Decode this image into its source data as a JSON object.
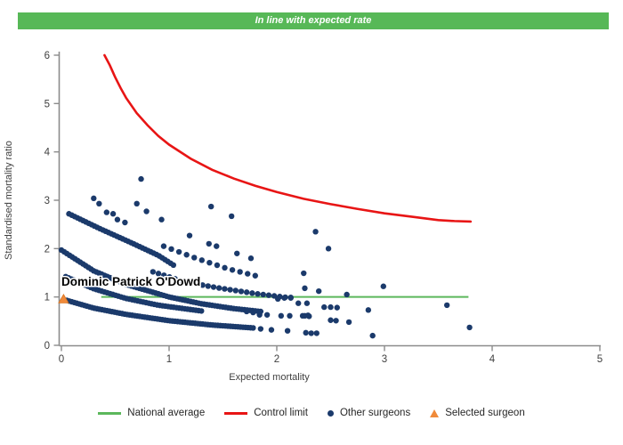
{
  "header": {
    "title": "In line with expected rate",
    "background": "#57b857"
  },
  "colors": {
    "axis": "#8c8c8c",
    "tick_text": "#3f3f3f",
    "other_surgeons": "#1b3a6b",
    "control_limit": "#e81515",
    "national_average": "#5cb85c",
    "selected_surgeon": "#f08a3a",
    "selected_surgeon_edge": "#d9731f",
    "label_text": "#000000"
  },
  "legend": {
    "items": [
      {
        "label": "National average",
        "marker": "line",
        "color": "#5cb85c"
      },
      {
        "label": "Control limit",
        "marker": "line",
        "color": "#e81515"
      },
      {
        "label": "Other surgeons",
        "marker": "dot",
        "color": "#1b3a6b"
      },
      {
        "label": "Selected surgeon",
        "marker": "triangle",
        "color": "#f08a3a"
      }
    ]
  },
  "chart_data": {
    "type": "scatter",
    "title": "In line with expected rate",
    "xlabel": "Expected mortality",
    "ylabel": "Standardised mortality ratio",
    "xlim": [
      0,
      5
    ],
    "ylim": [
      0,
      6
    ],
    "x_ticks": [
      0,
      1,
      2,
      3,
      4,
      5
    ],
    "y_ticks": [
      0,
      1,
      2,
      3,
      4,
      5,
      6
    ],
    "grid": false,
    "legend_position": "bottom",
    "national_average": {
      "y": 1.0,
      "x_start": 0.37,
      "x_end": 3.78
    },
    "control_limit": {
      "points": [
        [
          0.4,
          6.0
        ],
        [
          0.45,
          5.79
        ],
        [
          0.5,
          5.54
        ],
        [
          0.55,
          5.32
        ],
        [
          0.6,
          5.12
        ],
        [
          0.7,
          4.8
        ],
        [
          0.8,
          4.55
        ],
        [
          0.9,
          4.33
        ],
        [
          1.0,
          4.15
        ],
        [
          1.2,
          3.86
        ],
        [
          1.4,
          3.63
        ],
        [
          1.6,
          3.45
        ],
        [
          1.8,
          3.3
        ],
        [
          2.0,
          3.17
        ],
        [
          2.25,
          3.03
        ],
        [
          2.5,
          2.92
        ],
        [
          2.75,
          2.82
        ],
        [
          3.0,
          2.73
        ],
        [
          3.25,
          2.66
        ],
        [
          3.5,
          2.59
        ],
        [
          3.65,
          2.57
        ],
        [
          3.8,
          2.56
        ]
      ]
    },
    "selected_surgeon": {
      "label": "Dominic Patrick O'Dowd",
      "x": 0.02,
      "y": 0.96
    },
    "other_surgeons": {
      "dot_radius": 3.2,
      "chains": [
        {
          "count": 75,
          "anchors": [
            [
              0.05,
              0.93
            ],
            [
              0.3,
              0.77
            ],
            [
              0.6,
              0.64
            ],
            [
              1.0,
              0.51
            ],
            [
              1.4,
              0.42
            ],
            [
              1.78,
              0.36
            ]
          ]
        },
        {
          "count": 50,
          "anchors": [
            [
              0.04,
              1.42
            ],
            [
              0.3,
              1.17
            ],
            [
              0.6,
              0.97
            ],
            [
              0.9,
              0.83
            ],
            [
              1.3,
              0.71
            ]
          ]
        },
        {
          "count": 75,
          "anchors": [
            [
              0.0,
              1.97
            ],
            [
              0.3,
              1.54
            ],
            [
              0.6,
              1.26
            ],
            [
              1.0,
              1.0
            ],
            [
              1.3,
              0.86
            ],
            [
              1.6,
              0.76
            ],
            [
              1.85,
              0.7
            ]
          ]
        },
        {
          "count": 38,
          "anchors": [
            [
              0.07,
              2.72
            ],
            [
              0.35,
              2.42
            ],
            [
              0.65,
              2.12
            ],
            [
              0.9,
              1.86
            ],
            [
              1.04,
              1.66
            ]
          ]
        },
        {
          "count": 26,
          "anchors": [
            [
              0.85,
              1.52
            ],
            [
              1.15,
              1.31
            ],
            [
              1.45,
              1.19
            ],
            [
              1.8,
              1.07
            ],
            [
              2.13,
              0.98
            ]
          ]
        },
        {
          "count": 13,
          "anchors": [
            [
              0.95,
              2.05
            ],
            [
              1.25,
              1.8
            ],
            [
              1.55,
              1.58
            ],
            [
              1.8,
              1.44
            ]
          ]
        }
      ],
      "points": [
        [
          0.3,
          3.04
        ],
        [
          0.35,
          2.93
        ],
        [
          0.42,
          2.75
        ],
        [
          0.48,
          2.72
        ],
        [
          0.52,
          2.6
        ],
        [
          0.59,
          2.54
        ],
        [
          0.7,
          2.93
        ],
        [
          0.74,
          3.44
        ],
        [
          0.79,
          2.77
        ],
        [
          0.93,
          2.6
        ],
        [
          1.19,
          2.27
        ],
        [
          1.39,
          2.87
        ],
        [
          1.58,
          2.67
        ],
        [
          1.37,
          2.1
        ],
        [
          1.44,
          2.05
        ],
        [
          1.63,
          1.9
        ],
        [
          1.76,
          1.8
        ],
        [
          2.36,
          2.35
        ],
        [
          2.48,
          2.0
        ],
        [
          2.25,
          1.49
        ],
        [
          2.26,
          1.18
        ],
        [
          2.39,
          1.12
        ],
        [
          2.65,
          1.05
        ],
        [
          2.99,
          1.22
        ],
        [
          2.01,
          0.96
        ],
        [
          2.07,
          0.98
        ],
        [
          2.13,
          0.99
        ],
        [
          2.2,
          0.87
        ],
        [
          2.28,
          0.87
        ],
        [
          2.44,
          0.79
        ],
        [
          2.5,
          0.79
        ],
        [
          2.56,
          0.78
        ],
        [
          2.85,
          0.73
        ],
        [
          3.58,
          0.83
        ],
        [
          2.04,
          0.61
        ],
        [
          2.12,
          0.61
        ],
        [
          2.24,
          0.61
        ],
        [
          2.29,
          0.62
        ],
        [
          2.26,
          0.61
        ],
        [
          2.3,
          0.6
        ],
        [
          2.5,
          0.52
        ],
        [
          2.55,
          0.51
        ],
        [
          2.67,
          0.48
        ],
        [
          1.72,
          0.7
        ],
        [
          1.78,
          0.68
        ],
        [
          1.84,
          0.63
        ],
        [
          1.91,
          0.63
        ],
        [
          1.85,
          0.34
        ],
        [
          1.95,
          0.32
        ],
        [
          2.1,
          0.3
        ],
        [
          2.27,
          0.26
        ],
        [
          2.32,
          0.25
        ],
        [
          2.37,
          0.25
        ],
        [
          2.89,
          0.2
        ],
        [
          3.79,
          0.37
        ]
      ]
    }
  }
}
